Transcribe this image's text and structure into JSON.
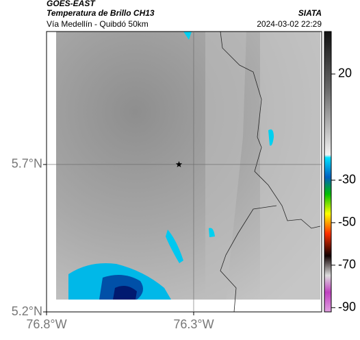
{
  "header": {
    "source": "GOES-EAST",
    "product": "Temperatura de Brillo CH13",
    "brand": "SIATA",
    "route": "Vía Medellín - Quibdó 50km",
    "timestamp": "2024-03-02 22:29"
  },
  "map": {
    "lon_lim": [
      -76.8,
      -75.865
    ],
    "lat_lim": [
      5.2,
      6.151
    ],
    "lon_ticks": [
      {
        "value": -76.8,
        "label": "76.8°W"
      },
      {
        "value": -76.3,
        "label": "76.3°W"
      }
    ],
    "lat_ticks": [
      {
        "value": 5.7,
        "label": "5.7°N"
      },
      {
        "value": 5.2,
        "label": "5.2°N"
      }
    ],
    "marker": {
      "lon": -76.35,
      "lat": 5.7
    }
  },
  "colorbar": {
    "lim": [
      -92,
      40
    ],
    "ticks": [
      20,
      -30,
      -50,
      -70,
      -90
    ]
  }
}
